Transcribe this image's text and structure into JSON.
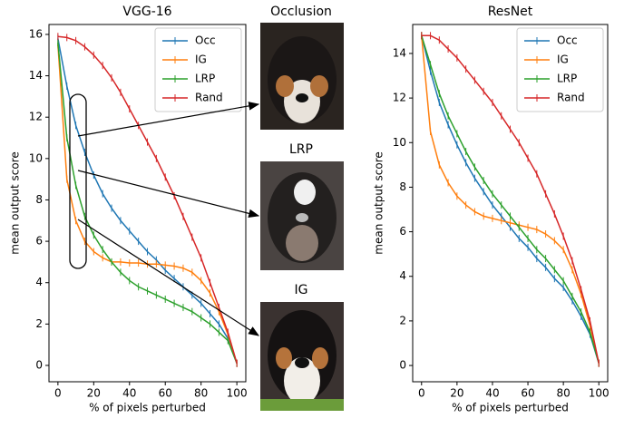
{
  "chart_data": [
    {
      "type": "line",
      "title": "VGG-16",
      "xlabel": "% of pixels perturbed",
      "ylabel": "mean output score",
      "x": [
        0,
        5,
        10,
        15,
        20,
        25,
        30,
        35,
        40,
        45,
        50,
        55,
        60,
        65,
        70,
        75,
        80,
        85,
        90,
        95,
        100
      ],
      "xlim": [
        -5,
        105
      ],
      "xticks": [
        0,
        20,
        40,
        60,
        80,
        100
      ],
      "ylim": [
        -0.79,
        16.48
      ],
      "yticks": [
        0,
        2,
        4,
        6,
        8,
        10,
        12,
        14,
        16
      ],
      "legend": "upper right",
      "series": [
        {
          "name": "Occ",
          "color": "#1f77b4",
          "values": [
            15.8,
            13.5,
            11.6,
            10.3,
            9.2,
            8.3,
            7.6,
            7.0,
            6.5,
            6.0,
            5.5,
            5.1,
            4.6,
            4.2,
            3.8,
            3.4,
            3.0,
            2.5,
            2.0,
            1.3,
            0.1
          ]
        },
        {
          "name": "IG",
          "color": "#ff7f0e",
          "values": [
            15.5,
            9.0,
            7.0,
            6.0,
            5.5,
            5.2,
            5.0,
            5.0,
            4.95,
            4.95,
            4.9,
            4.9,
            4.85,
            4.8,
            4.7,
            4.5,
            4.1,
            3.5,
            2.6,
            1.5,
            0.1
          ]
        },
        {
          "name": "LRP",
          "color": "#2ca02c",
          "values": [
            15.6,
            11.0,
            8.7,
            7.2,
            6.3,
            5.6,
            5.0,
            4.5,
            4.1,
            3.8,
            3.6,
            3.4,
            3.2,
            3.0,
            2.8,
            2.6,
            2.3,
            2.0,
            1.6,
            1.2,
            0.1
          ]
        },
        {
          "name": "Rand",
          "color": "#d62728",
          "values": [
            15.9,
            15.85,
            15.7,
            15.4,
            15.0,
            14.5,
            13.9,
            13.2,
            12.4,
            11.6,
            10.8,
            10.0,
            9.1,
            8.2,
            7.2,
            6.2,
            5.2,
            4.0,
            2.8,
            1.6,
            0.1
          ]
        }
      ]
    },
    {
      "type": "line",
      "title": "ResNet",
      "xlabel": "% of pixels perturbed",
      "ylabel": "mean output score",
      "x": [
        0,
        5,
        10,
        15,
        20,
        25,
        30,
        35,
        40,
        45,
        50,
        55,
        60,
        65,
        70,
        75,
        80,
        85,
        90,
        95,
        100
      ],
      "xlim": [
        -5,
        105
      ],
      "xticks": [
        0,
        20,
        40,
        60,
        80,
        100
      ],
      "ylim": [
        -0.73,
        15.3
      ],
      "yticks": [
        0,
        2,
        4,
        6,
        8,
        10,
        12,
        14
      ],
      "legend": "upper right",
      "series": [
        {
          "name": "Occ",
          "color": "#1f77b4",
          "values": [
            14.8,
            13.2,
            11.8,
            10.8,
            9.9,
            9.1,
            8.4,
            7.8,
            7.2,
            6.7,
            6.2,
            5.7,
            5.3,
            4.8,
            4.4,
            3.9,
            3.5,
            2.9,
            2.2,
            1.4,
            0.1
          ]
        },
        {
          "name": "IG",
          "color": "#ff7f0e",
          "values": [
            14.8,
            10.5,
            9.0,
            8.2,
            7.6,
            7.2,
            6.9,
            6.7,
            6.6,
            6.5,
            6.4,
            6.3,
            6.2,
            6.1,
            5.9,
            5.6,
            5.2,
            4.3,
            3.2,
            1.8,
            0.1
          ]
        },
        {
          "name": "LRP",
          "color": "#2ca02c",
          "values": [
            14.8,
            13.5,
            12.2,
            11.2,
            10.4,
            9.6,
            8.9,
            8.3,
            7.7,
            7.2,
            6.7,
            6.2,
            5.7,
            5.2,
            4.8,
            4.3,
            3.8,
            3.1,
            2.4,
            1.5,
            0.1
          ]
        },
        {
          "name": "Rand",
          "color": "#d62728",
          "values": [
            14.8,
            14.8,
            14.6,
            14.2,
            13.8,
            13.3,
            12.8,
            12.3,
            11.8,
            11.2,
            10.6,
            10.0,
            9.3,
            8.6,
            7.7,
            6.8,
            5.8,
            4.7,
            3.4,
            2.0,
            0.1
          ]
        }
      ]
    }
  ],
  "images": [
    {
      "title": "Occlusion"
    },
    {
      "title": "LRP"
    },
    {
      "title": "IG"
    }
  ]
}
